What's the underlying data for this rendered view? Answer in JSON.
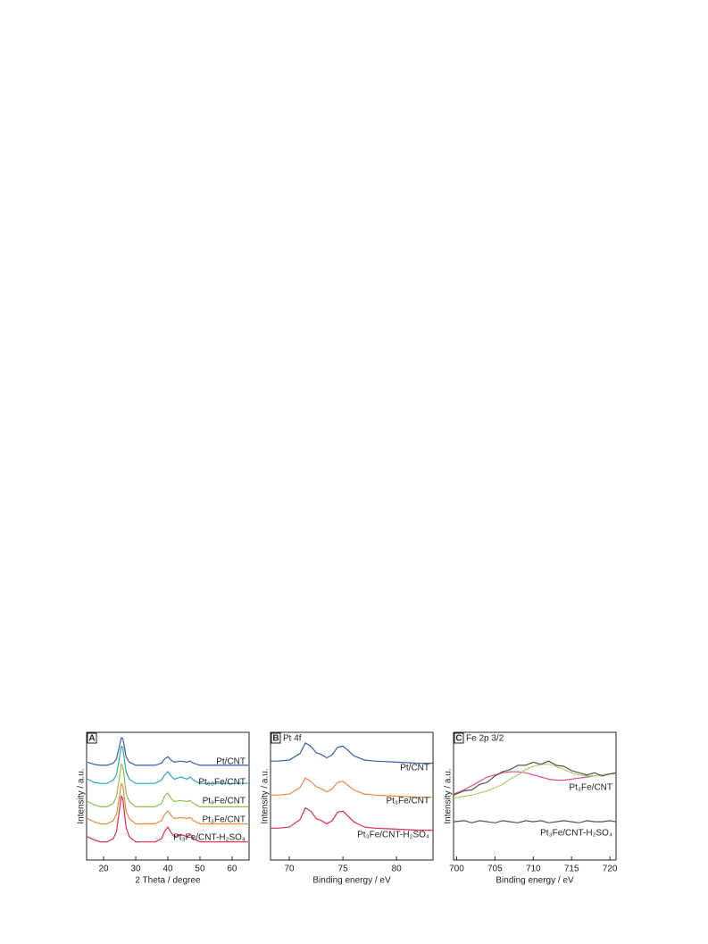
{
  "chart_data": [
    {
      "type": "line",
      "panel_label": "A",
      "x_label": "2 Theta / degree",
      "y_label": "Intensity / a.u.",
      "x": [
        15,
        17,
        19,
        21,
        23,
        24,
        25,
        25.5,
        26,
        26.5,
        27,
        28,
        30,
        33,
        36,
        38,
        39,
        40,
        41,
        42,
        44,
        46,
        47,
        48,
        50,
        53,
        56,
        60,
        65
      ],
      "xlim": [
        14.7,
        65.3
      ],
      "ylim": [
        0,
        12
      ],
      "xticks": [
        20,
        30,
        40,
        50,
        60
      ],
      "series": [
        {
          "name": "Pt/CNT",
          "color": "#3a5ca8",
          "values": [
            9.2,
            9.0,
            8.9,
            8.9,
            9.1,
            9.5,
            10.8,
            11.5,
            11.4,
            10.6,
            9.7,
            9.2,
            8.9,
            8.9,
            8.9,
            9.1,
            9.5,
            9.7,
            9.4,
            9.2,
            9.3,
            9.2,
            9.3,
            9.1,
            8.9,
            8.9,
            8.9,
            8.9,
            8.9
          ]
        },
        {
          "name": "Pt₆₀Fe/CNT",
          "color": "#2aa8b0",
          "values": [
            7.6,
            7.3,
            7.2,
            7.2,
            7.5,
            8.0,
            9.7,
            10.7,
            10.6,
            9.4,
            8.3,
            7.6,
            7.2,
            7.2,
            7.2,
            7.5,
            8.0,
            8.3,
            7.9,
            7.6,
            7.8,
            7.6,
            7.8,
            7.5,
            7.2,
            7.2,
            7.2,
            7.2,
            7.2
          ]
        },
        {
          "name": "Pt₉Fe/CNT",
          "color": "#8cc04a",
          "values": [
            5.5,
            5.2,
            5.0,
            5.0,
            5.3,
            6.0,
            7.9,
            9.0,
            8.8,
            7.6,
            6.3,
            5.5,
            5.0,
            5.0,
            5.0,
            5.3,
            6.0,
            6.3,
            5.8,
            5.5,
            5.6,
            5.5,
            5.6,
            5.3,
            5.0,
            5.0,
            5.0,
            5.0,
            5.0
          ]
        },
        {
          "name": "Pt₃Fe/CNT",
          "color": "#f0883a",
          "values": [
            3.9,
            3.6,
            3.4,
            3.4,
            3.7,
            4.3,
            6.1,
            7.2,
            7.0,
            5.8,
            4.6,
            3.9,
            3.4,
            3.4,
            3.4,
            3.7,
            4.3,
            4.6,
            4.2,
            3.9,
            4.0,
            3.9,
            4.0,
            3.7,
            3.4,
            3.4,
            3.4,
            3.4,
            3.4
          ]
        },
        {
          "name": "Pt₃Fe/CNT-H₂SO₄",
          "color": "#e8284a",
          "values": [
            2.2,
            1.9,
            1.7,
            1.7,
            2.0,
            2.7,
            4.8,
            6.0,
            5.8,
            4.4,
            3.1,
            2.2,
            1.7,
            1.7,
            1.7,
            2.0,
            2.7,
            3.1,
            2.6,
            2.2,
            2.4,
            2.2,
            2.4,
            2.0,
            1.7,
            1.7,
            1.7,
            1.7,
            1.7
          ]
        }
      ]
    },
    {
      "type": "line",
      "panel_label": "B",
      "title": "Pt 4f",
      "x_label": "Binding energy / eV",
      "y_label": "Intensity / a.u.",
      "x": [
        68.25,
        69,
        70,
        71,
        71.5,
        72,
        72.5,
        73,
        73.5,
        74,
        74.5,
        75,
        75.5,
        76,
        77,
        78,
        80,
        82,
        83.4
      ],
      "xlim": [
        68.25,
        83.4
      ],
      "ylim": [
        0,
        12
      ],
      "xticks": [
        70,
        75,
        80
      ],
      "series": [
        {
          "name": "Pt/CNT",
          "color": "#3a5ca8",
          "values": [
            9.3,
            9.3,
            9.4,
            10.0,
            11.0,
            10.7,
            10.1,
            9.9,
            9.6,
            9.9,
            10.6,
            10.7,
            10.3,
            9.8,
            9.4,
            9.3,
            9.2,
            9.1,
            9.1
          ]
        },
        {
          "name": "Pt₃Fe/CNT",
          "color": "#f0883a",
          "values": [
            6.1,
            6.1,
            6.2,
            6.8,
            7.7,
            7.4,
            6.9,
            6.7,
            6.4,
            6.7,
            7.3,
            7.4,
            7.0,
            6.6,
            6.2,
            6.1,
            6.0,
            5.9,
            5.9
          ]
        },
        {
          "name": "Pt₃Fe/CNT-H₂SO₄",
          "color": "#e8284a",
          "values": [
            3.0,
            3.0,
            3.1,
            3.8,
            4.9,
            4.6,
            3.9,
            3.7,
            3.4,
            3.7,
            4.5,
            4.6,
            4.1,
            3.6,
            3.1,
            3.0,
            2.9,
            2.8,
            2.8
          ]
        }
      ]
    },
    {
      "type": "line",
      "panel_label": "C",
      "title": "Fe 2p 3/2",
      "x_label": "Binding energy / eV",
      "y_label": "Intensity / a.u.",
      "x": [
        699.6,
        701,
        702,
        703,
        704,
        705,
        706,
        707,
        708,
        709,
        710,
        711,
        712,
        713,
        714,
        715,
        716,
        717,
        718,
        719,
        720,
        720.8
      ],
      "xlim": [
        699.6,
        720.8
      ],
      "ylim": [
        0,
        12
      ],
      "xticks": [
        700,
        705,
        710,
        715,
        720
      ],
      "series": [
        {
          "color": "#e8507a",
          "values": [
            6.2,
            6.6,
            7.0,
            7.4,
            7.8,
            8.0,
            8.2,
            8.3,
            8.3,
            8.2,
            8.0,
            7.8,
            7.6,
            7.5,
            7.5,
            7.6,
            7.7,
            7.8,
            7.9,
            8.0,
            8.1,
            8.1
          ]
        },
        {
          "color": "#a8d060",
          "values": [
            5.8,
            6.0,
            6.1,
            6.3,
            6.5,
            6.8,
            7.1,
            7.6,
            8.0,
            8.5,
            8.8,
            9.0,
            9.0,
            8.8,
            8.5,
            8.2,
            8.0,
            7.9,
            7.9,
            8.0,
            8.1,
            8.1
          ]
        },
        {
          "name": "Pt₃Fe/CNT",
          "color": "#555555",
          "values": [
            6.1,
            6.5,
            6.6,
            7.1,
            7.3,
            7.9,
            8.3,
            8.5,
            8.9,
            8.9,
            9.2,
            9.0,
            9.3,
            8.9,
            8.8,
            8.4,
            8.2,
            8.0,
            8.2,
            7.9,
            8.1,
            8.2
          ]
        },
        {
          "name": "Pt₃Fe/CNT-H₂SO₄",
          "color": "#555555",
          "values": [
            3.6,
            3.7,
            3.5,
            3.7,
            3.6,
            3.5,
            3.7,
            3.6,
            3.5,
            3.7,
            3.6,
            3.7,
            3.5,
            3.6,
            3.7,
            3.6,
            3.5,
            3.7,
            3.6,
            3.6,
            3.7,
            3.6
          ]
        }
      ]
    }
  ]
}
